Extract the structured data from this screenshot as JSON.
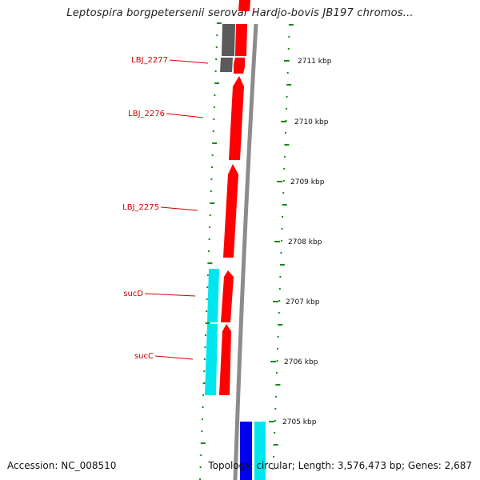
{
  "title": "Leptospira borgpetersenii serovar Hardjo-bovis JB197 chromos...",
  "footer": {
    "accession": "Accession: NC_008510",
    "info": "Topology: circular; Length: 3,576,473 bp; Genes: 2,687"
  },
  "colors": {
    "forward_cds": "#ff0000",
    "reverse_cds": "#00e5ee",
    "backbone": "#8c8c8c",
    "gray_feature": "#5a5a5a",
    "blue_feature": "#0000ee",
    "tick": "#1b8a1b",
    "label": "#cc0000"
  },
  "gene_labels": [
    "LBJ_2277",
    "LBJ_2276",
    "LBJ_2275",
    "sucD",
    "sucC"
  ],
  "scale_ticks": [
    "2711 kbp",
    "2710 kbp",
    "2709 kbp",
    "2708 kbp",
    "2707 kbp",
    "2706 kbp",
    "2705 kbp"
  ]
}
